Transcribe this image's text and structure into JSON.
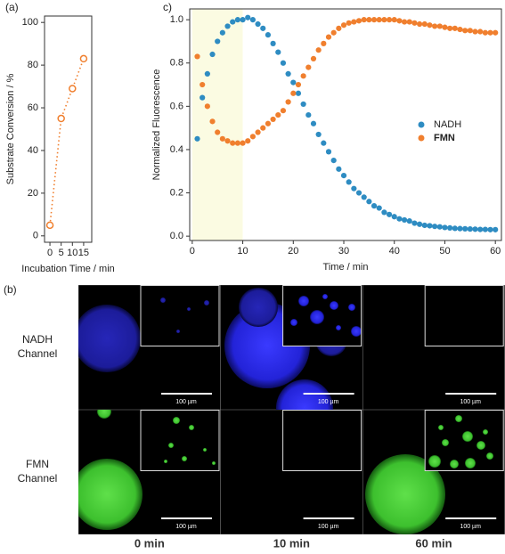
{
  "chart_data": [
    {
      "type": "line",
      "panel_label": "(a)",
      "xlabel": "Incubation Time / min",
      "ylabel": "Substrate Conversion / %",
      "x": [
        0,
        5,
        10,
        15
      ],
      "values": [
        5,
        55,
        69,
        83
      ],
      "color": "#f07f2e",
      "xlim": [
        -2.4,
        18.6
      ],
      "xticks": [
        0,
        5,
        10,
        15
      ],
      "ylim": [
        -3,
        103
      ],
      "yticks": [
        0,
        20,
        40,
        60,
        80,
        100
      ]
    },
    {
      "type": "scatter",
      "panel_label": "c)",
      "xlabel": "Time / min",
      "ylabel": "Normalized Fluorescence",
      "shaded_xrange": [
        0,
        10
      ],
      "shade_color": "#fbfbe2",
      "legend": "right",
      "x": [
        1,
        2,
        3,
        4,
        5,
        6,
        7,
        8,
        9,
        10,
        11,
        12,
        13,
        14,
        15,
        16,
        17,
        18,
        19,
        20,
        21,
        22,
        23,
        24,
        25,
        26,
        27,
        28,
        29,
        30,
        31,
        32,
        33,
        34,
        35,
        36,
        37,
        38,
        39,
        40,
        41,
        42,
        43,
        44,
        45,
        46,
        47,
        48,
        49,
        50,
        51,
        52,
        53,
        54,
        55,
        56,
        57,
        58,
        59,
        60
      ],
      "series": [
        {
          "name": "NADH",
          "color": "#2e8cc2",
          "values": [
            0.45,
            0.64,
            0.75,
            0.84,
            0.9,
            0.94,
            0.97,
            0.99,
            1.0,
            1.0,
            1.01,
            1.0,
            0.98,
            0.96,
            0.93,
            0.89,
            0.85,
            0.8,
            0.75,
            0.71,
            0.66,
            0.61,
            0.56,
            0.52,
            0.47,
            0.43,
            0.39,
            0.35,
            0.31,
            0.28,
            0.25,
            0.22,
            0.2,
            0.18,
            0.16,
            0.14,
            0.13,
            0.11,
            0.1,
            0.09,
            0.08,
            0.075,
            0.07,
            0.06,
            0.055,
            0.05,
            0.048,
            0.045,
            0.043,
            0.04,
            0.038,
            0.036,
            0.035,
            0.034,
            0.033,
            0.032,
            0.031,
            0.031,
            0.03,
            0.03
          ]
        },
        {
          "name": "FMN",
          "color": "#f07f2e",
          "values": [
            0.83,
            0.7,
            0.6,
            0.53,
            0.48,
            0.45,
            0.44,
            0.43,
            0.43,
            0.43,
            0.44,
            0.46,
            0.48,
            0.5,
            0.52,
            0.54,
            0.56,
            0.58,
            0.62,
            0.66,
            0.7,
            0.74,
            0.78,
            0.82,
            0.86,
            0.89,
            0.92,
            0.94,
            0.96,
            0.975,
            0.985,
            0.99,
            0.995,
            1.0,
            1.0,
            1.0,
            1.0,
            1.0,
            1.0,
            1.0,
            0.995,
            0.99,
            0.99,
            0.985,
            0.98,
            0.98,
            0.975,
            0.97,
            0.97,
            0.965,
            0.96,
            0.96,
            0.955,
            0.95,
            0.95,
            0.945,
            0.945,
            0.94,
            0.94,
            0.94
          ]
        }
      ],
      "xlim": [
        -0.5,
        61.2
      ],
      "xticks": [
        0,
        10,
        20,
        30,
        40,
        50,
        60
      ],
      "ylim": [
        -0.02,
        1.05
      ],
      "yticks": [
        {
          "value": 0,
          "label": "0.0"
        },
        0.2,
        0.4,
        0.6,
        0.8,
        {
          "value": 1,
          "label": "1.0"
        }
      ]
    }
  ],
  "panel_b": {
    "panel_label": "(b)",
    "row_labels": [
      [
        "NADH",
        "Channel"
      ],
      [
        "FMN",
        "Channel"
      ]
    ],
    "column_labels": [
      "0 min",
      "10 min",
      "60 min"
    ],
    "scale_bar_label": "100 µm"
  }
}
